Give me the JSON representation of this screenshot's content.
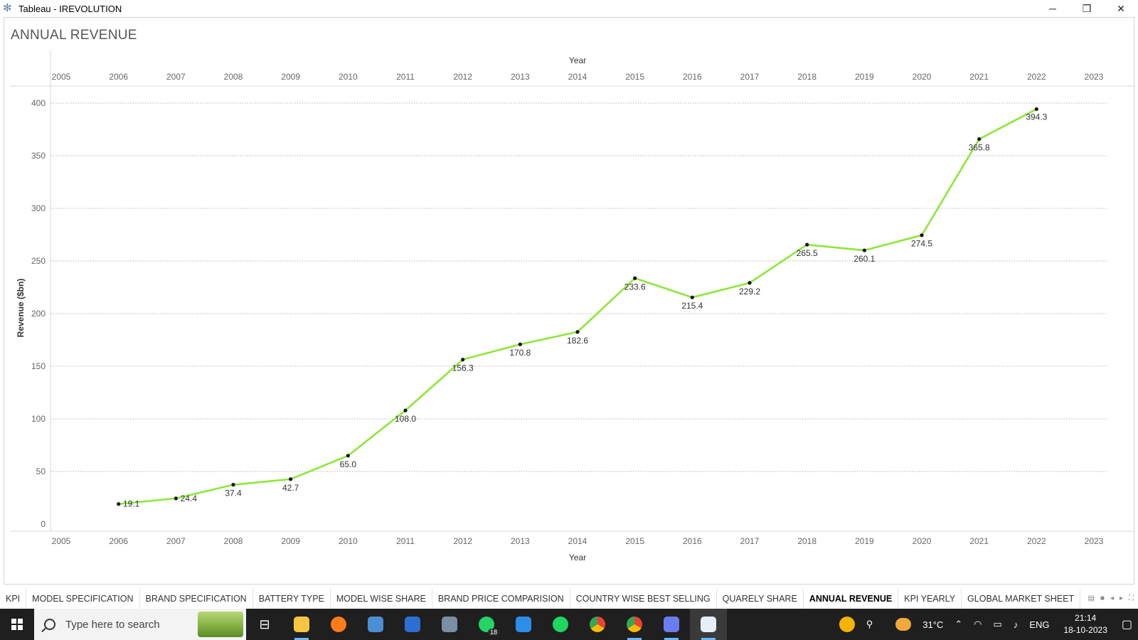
{
  "window": {
    "title": "Tableau - IREVOLUTION",
    "minimize": "─",
    "restore": "❐",
    "close": "✕"
  },
  "sheet": {
    "title": "ANNUAL REVENUE"
  },
  "chart_data": {
    "type": "line",
    "xlabel_top": "Year",
    "xlabel_bottom": "Year",
    "ylabel": "Revenue ($bn)",
    "xlim": [
      2005,
      2023
    ],
    "ylim": [
      0,
      400
    ],
    "x_ticks": [
      2005,
      2006,
      2007,
      2008,
      2009,
      2010,
      2011,
      2012,
      2013,
      2014,
      2015,
      2016,
      2017,
      2018,
      2019,
      2020,
      2021,
      2022,
      2023
    ],
    "y_ticks": [
      0,
      50,
      100,
      150,
      200,
      250,
      300,
      350,
      400
    ],
    "grid": true,
    "line_color": "#8ee63a",
    "x": [
      2006,
      2007,
      2008,
      2009,
      2010,
      2011,
      2012,
      2013,
      2014,
      2015,
      2016,
      2017,
      2018,
      2019,
      2020,
      2021,
      2022
    ],
    "values": [
      19.1,
      24.4,
      37.4,
      42.7,
      65.0,
      108.0,
      156.3,
      170.8,
      182.6,
      233.6,
      215.4,
      229.2,
      265.5,
      260.1,
      274.5,
      365.8,
      394.3
    ],
    "labels": [
      "19.1",
      "24.4",
      "37.4",
      "42.7",
      "65.0",
      "108.0",
      "156.3",
      "170.8",
      "182.6",
      "233.6",
      "215.4",
      "229.2",
      "265.5",
      "260.1",
      "274.5",
      "365.8",
      "394.3"
    ]
  },
  "tabs": [
    {
      "label": "KPI",
      "active": false
    },
    {
      "label": "MODEL SPECIFICATION",
      "active": false
    },
    {
      "label": "BRAND SPECIFICATION",
      "active": false
    },
    {
      "label": "BATTERY TYPE",
      "active": false
    },
    {
      "label": "MODEL WISE SHARE",
      "active": false
    },
    {
      "label": "BRAND PRICE COMPARISION",
      "active": false
    },
    {
      "label": "COUNTRY WISE BEST SELLING",
      "active": false
    },
    {
      "label": "QUARELY SHARE",
      "active": false
    },
    {
      "label": "ANNUAL REVENUE",
      "active": true
    },
    {
      "label": "KPI YEARLY",
      "active": false
    },
    {
      "label": "GLOBAL MARKET SHEET",
      "active": false
    }
  ],
  "taskbar": {
    "search_placeholder": "Type here to search",
    "whatsapp_badge": "18",
    "weather": "31°C",
    "lang": "ENG",
    "time": "21:14",
    "date": "18-10-2023"
  }
}
